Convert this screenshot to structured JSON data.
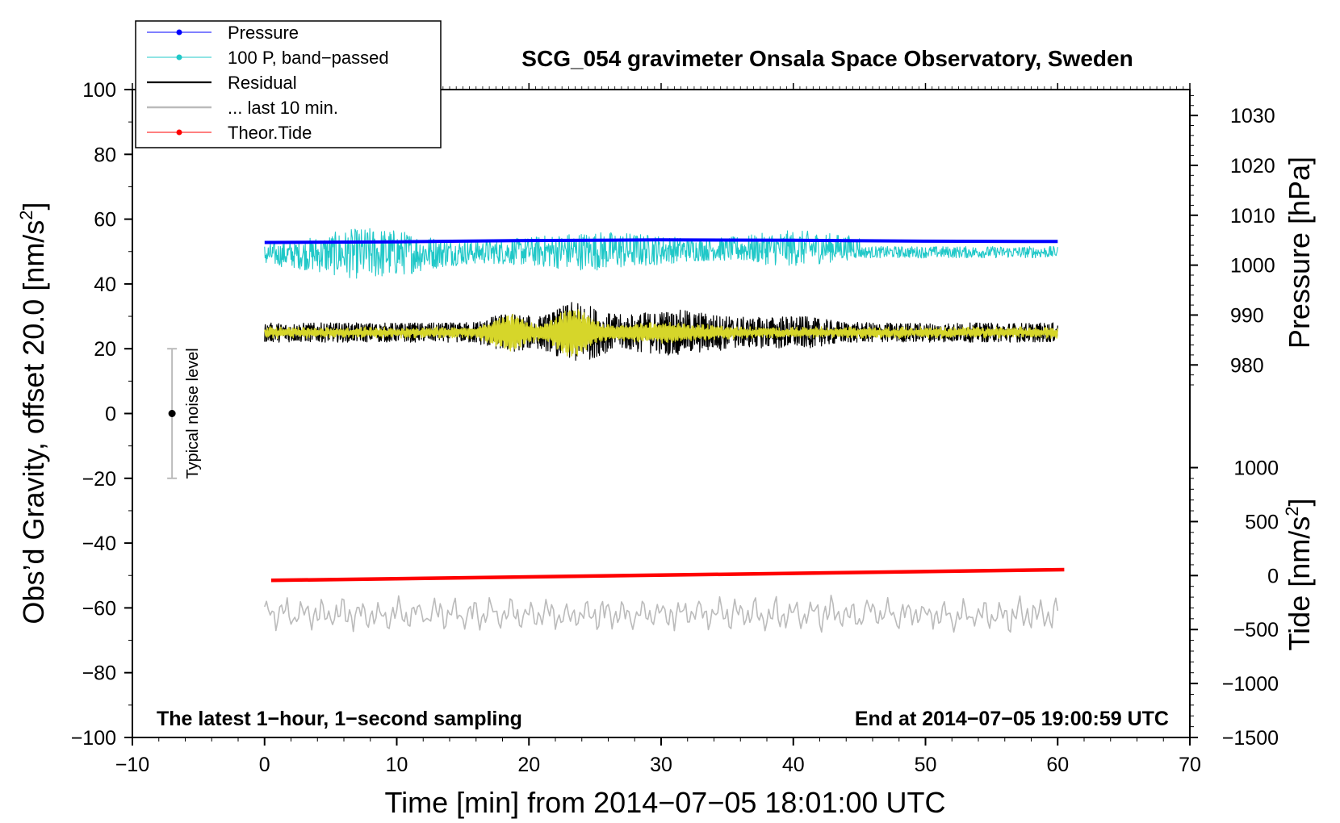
{
  "chart_data": {
    "type": "line",
    "title": "SCG_054 gravimeter Onsala Space Observatory, Sweden",
    "xlabel": "Time [min] from 2014−07−05 18:01:00 UTC",
    "ylabel": "Obs’d Gravity, offset 20.0 [nm/s²]",
    "ylabel_main": "Obs’d Gravity, offset 20.0 [nm/s",
    "ylabel_sup": "2",
    "ylabel_end": "]",
    "y2label": "Pressure [hPa]",
    "y3label": "Tide [nm/s²]",
    "y3label_main": "Tide [nm/s",
    "y3label_sup": "2",
    "y3label_end": "]",
    "xlim": [
      -10,
      70
    ],
    "ylim": [
      -100,
      100
    ],
    "x_ticks": [
      -10,
      0,
      10,
      20,
      30,
      40,
      50,
      60,
      70
    ],
    "x_tick_labels": [
      "−10",
      "0",
      "10",
      "20",
      "30",
      "40",
      "50",
      "60",
      "70"
    ],
    "y_ticks": [
      -100,
      -80,
      -60,
      -40,
      -20,
      0,
      20,
      40,
      60,
      80,
      100
    ],
    "y_tick_labels": [
      "−100",
      "−80",
      "−60",
      "−40",
      "−20",
      "0",
      "20",
      "40",
      "60",
      "80",
      "100"
    ],
    "pressure_axis": {
      "ticks": [
        980,
        990,
        1000,
        1010,
        1020,
        1030
      ],
      "tick_labels": [
        "980",
        "990",
        "1000",
        "1010",
        "1020",
        "1030"
      ],
      "gravity_equivalent": {
        "980": 15,
        "1030": 92
      }
    },
    "tide_axis": {
      "ticks": [
        -1500,
        -1000,
        -500,
        0,
        500,
        1000
      ],
      "tick_labels": [
        "−1500",
        "−1000",
        "−500",
        "0",
        "500",
        "1000"
      ],
      "gravity_equivalent": {
        "-1500": -100,
        "1000": -16.7
      }
    },
    "legend": {
      "position": "top-left",
      "entries": [
        {
          "label": "Pressure",
          "color": "#0000ff",
          "marker": true
        },
        {
          "label": "100 P, band−passed",
          "color": "#20c8c8",
          "marker": true
        },
        {
          "label": "Residual",
          "color": "#000000",
          "marker": false
        },
        {
          "label": "... last 10 min.",
          "color": "#bbbbbb",
          "marker": false
        },
        {
          "label": "Theor.Tide",
          "color": "#ff0000",
          "marker": true
        }
      ]
    },
    "series": [
      {
        "name": "Pressure",
        "color": "#0000ff",
        "x": [
          0,
          10,
          20,
          30,
          40,
          50,
          60
        ],
        "y": [
          52.8,
          53.0,
          53.4,
          53.6,
          53.5,
          53.2,
          53.1
        ]
      },
      {
        "name": "100 P, band−passed",
        "color": "#20c8c8",
        "x_range": [
          0,
          60
        ],
        "center": 49.5,
        "amplitude_range": [
          35,
          58
        ]
      },
      {
        "name": "Residual",
        "color": "#000000",
        "x_range": [
          0,
          60
        ],
        "center": 25,
        "amplitude_range": [
          12,
          36
        ]
      },
      {
        "name": "... last 10 min.",
        "color": "#bbbbbb",
        "x_range": [
          0,
          60
        ],
        "center": -62,
        "amplitude_range": [
          -68,
          -56
        ]
      },
      {
        "name": "Theor.Tide",
        "color": "#ff0000",
        "x": [
          0.5,
          60.5
        ],
        "y": [
          -51.5,
          -48.2
        ]
      }
    ],
    "noise_bar": {
      "label": "Typical noise level",
      "x": -7,
      "center": 0,
      "low": -20,
      "high": 20
    },
    "annotations": {
      "bottom_left": "The latest 1−hour, 1−second sampling",
      "bottom_right": "End at 2014−07−05 19:00:59 UTC"
    },
    "grid": false
  }
}
